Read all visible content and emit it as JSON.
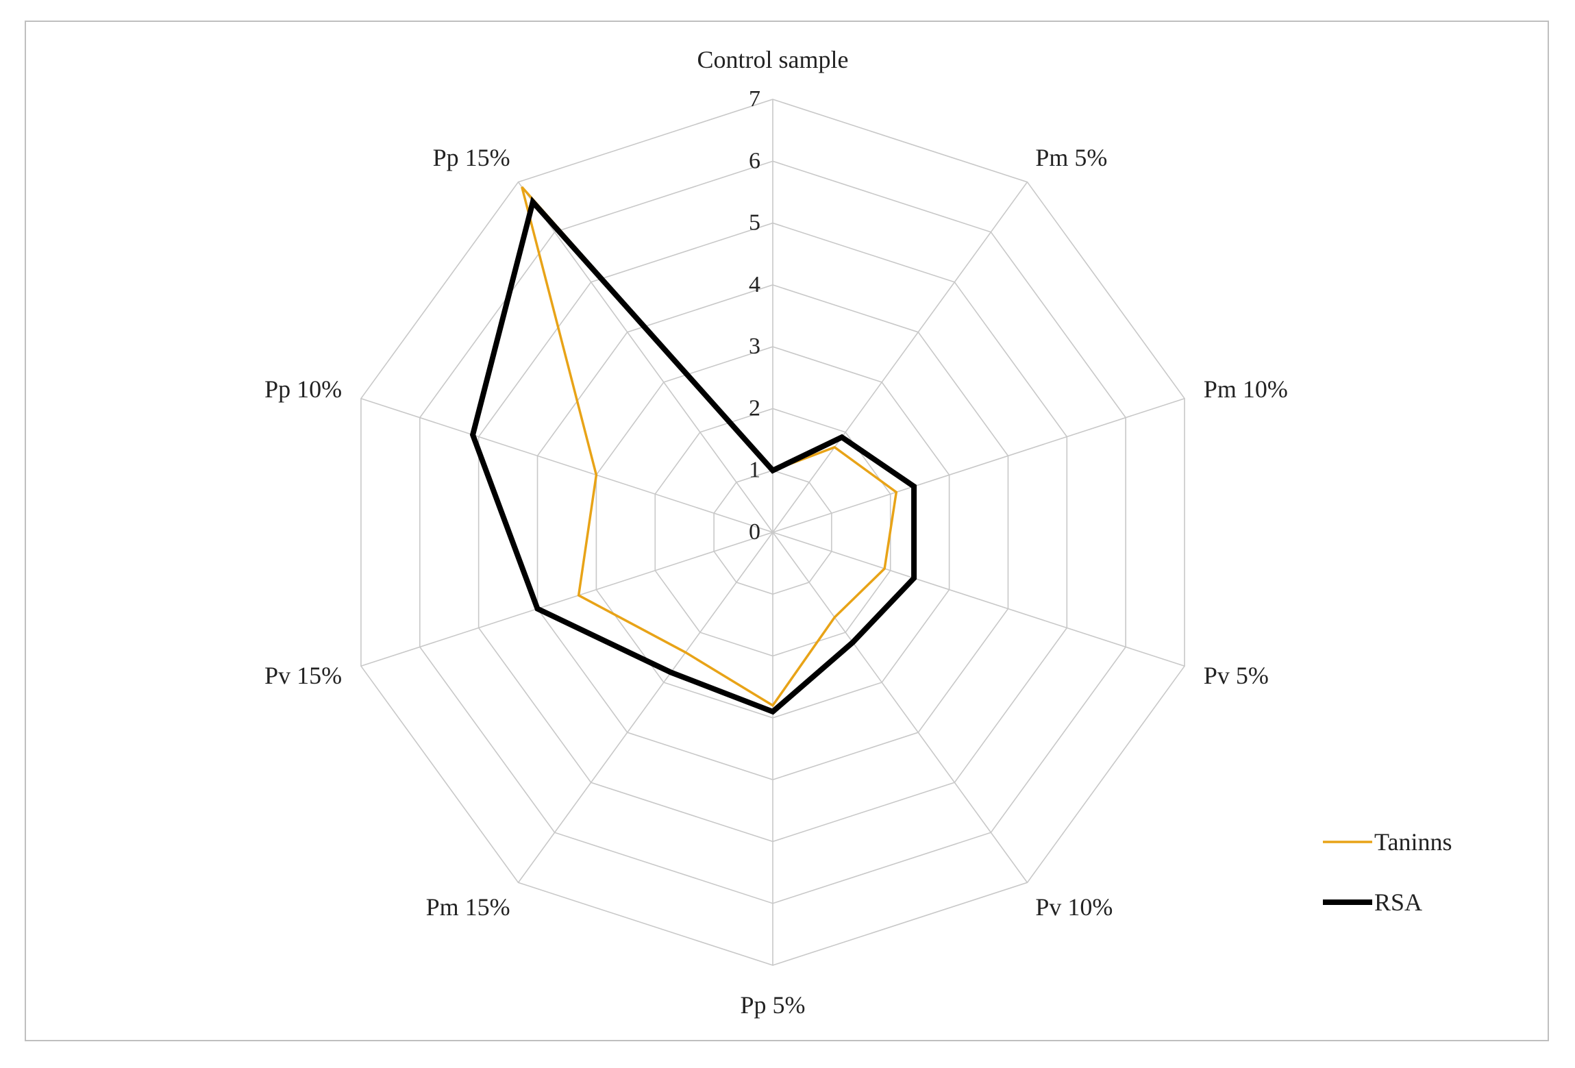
{
  "chart_data": {
    "type": "radar",
    "title": "",
    "categories": [
      "Control sample",
      "Pm 5%",
      "Pm 10%",
      "Pv 5%",
      "Pv 10%",
      "Pp 5%",
      "Pm 15%",
      "Pv 15%",
      "Pp 10%",
      "Pp 15%"
    ],
    "axis_ticks": [
      "0",
      "1",
      "2",
      "3",
      "4",
      "5",
      "6",
      "7"
    ],
    "rlim": [
      0,
      7
    ],
    "grid": true,
    "legend_position": "bottom-right",
    "series": [
      {
        "name": "Taninns",
        "color": "#E8A317",
        "values": [
          1.0,
          1.7,
          2.1,
          1.9,
          1.7,
          2.8,
          2.4,
          3.3,
          3.0,
          6.9
        ]
      },
      {
        "name": "RSA",
        "color": "#000000",
        "values": [
          1.0,
          1.9,
          2.4,
          2.4,
          2.2,
          2.9,
          2.8,
          4.0,
          5.1,
          6.6
        ]
      }
    ]
  }
}
